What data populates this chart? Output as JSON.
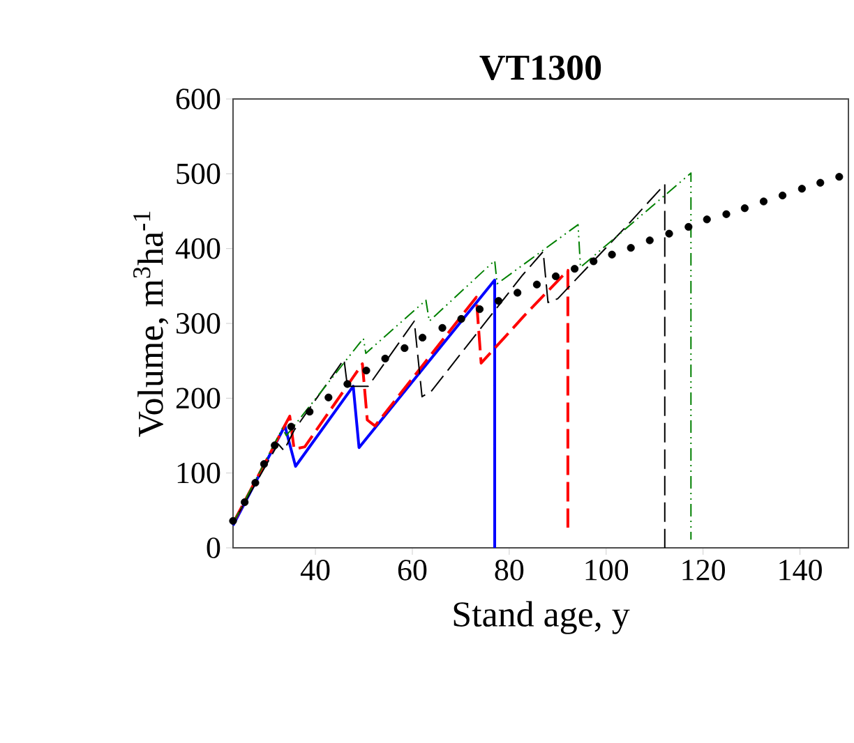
{
  "chart_data": {
    "type": "line",
    "title": "VT1300",
    "xlabel": "Stand age, y",
    "ylabel": "Volume, m$^{3}$ha$^{-1}$",
    "xlim": [
      23,
      150
    ],
    "ylim": [
      0,
      600
    ],
    "xticks": [
      40,
      60,
      80,
      100,
      120,
      140
    ],
    "yticks": [
      0,
      100,
      200,
      300,
      400,
      500,
      600
    ],
    "grid": false,
    "series": [
      {
        "color": "#0000ff",
        "line_style": "solid",
        "x": [
          23,
          33.7,
          35.9,
          47.8,
          49.0,
          77.0,
          77.0
        ],
        "values": [
          30,
          163,
          109,
          216,
          134,
          358,
          0
        ]
      },
      {
        "color": "#ff0000",
        "line_style": "dashed",
        "x": [
          23,
          34.7,
          35.6,
          37.8,
          46.6,
          49.7,
          50.7,
          52.3,
          73.2,
          74.2,
          79.0,
          83.2,
          92.1,
          92.1
        ],
        "values": [
          33,
          176,
          132,
          135,
          217,
          246,
          171,
          163,
          335,
          247,
          281,
          311,
          371,
          27
        ]
      },
      {
        "color": "#000000",
        "line_style": "dashed",
        "x": [
          23,
          32.3,
          33.5,
          35.6,
          45.9,
          46.6,
          50.9,
          60.4,
          62.0,
          64.0,
          82.8,
          87.0,
          88.0,
          90.0,
          104.2,
          112.1,
          112.1
        ],
        "values": [
          33,
          139,
          130,
          157,
          252,
          216,
          216,
          303,
          202,
          210,
          365,
          396,
          328,
          333,
          430,
          486,
          0
        ]
      },
      {
        "color": "#008000",
        "line_style": "dashdot",
        "x": [
          23,
          33.2,
          34.0,
          49.9,
          50.4,
          62.8,
          63.5,
          77.0,
          77.5,
          94.2,
          94.7,
          117.5,
          117.5
        ],
        "values": [
          33,
          160,
          150,
          280,
          260,
          331,
          303,
          384,
          353,
          432,
          375,
          501,
          11
        ]
      },
      {
        "type": "scatter",
        "color": "#000000",
        "marker": "circle",
        "x": [
          23,
          25.4,
          27.6,
          29.4,
          31.6,
          35,
          38.8,
          42.7,
          46.6,
          50.5,
          54.4,
          58.4,
          62.1,
          66.2,
          70.1,
          73.9,
          77.8,
          81.7,
          85.7,
          89.6,
          93.5,
          97.4,
          101.2,
          105.1,
          109,
          113,
          117,
          120.8,
          124.8,
          128.6,
          132.5,
          136.4,
          140.4,
          144.2,
          148.1
        ],
        "values": [
          36,
          61,
          87,
          112,
          137,
          162,
          182,
          201,
          219,
          237,
          253,
          267,
          281,
          294,
          306,
          319,
          330,
          341,
          352,
          363,
          373,
          383,
          392,
          401,
          411,
          420,
          429,
          439,
          446,
          454,
          463,
          471,
          480,
          488,
          496
        ]
      }
    ]
  }
}
